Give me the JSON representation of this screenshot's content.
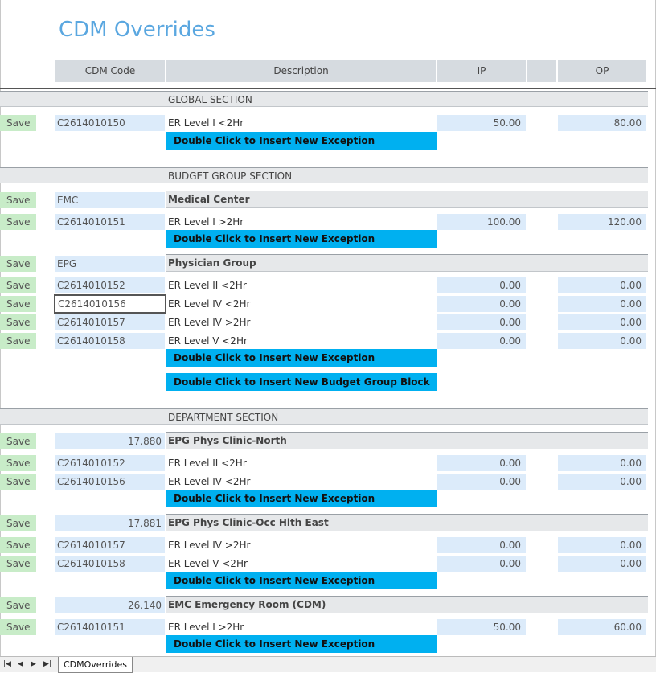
{
  "title": "CDM Overrides",
  "columns": {
    "cdm_code": "CDM Code",
    "description": "Description",
    "ip": "IP",
    "op": "OP"
  },
  "save_label": "Save",
  "sections": {
    "global": "GLOBAL SECTION",
    "budget": "BUDGET GROUP SECTION",
    "department": "DEPARTMENT SECTION"
  },
  "buttons": {
    "insert_exception": "Double Click to Insert New Exception",
    "insert_budget_block": "Double Click to Insert New Budget Group Block"
  },
  "global_rows": [
    {
      "code": "C2614010150",
      "desc": "ER Level I <2Hr",
      "ip": "50.00",
      "op": "80.00"
    }
  ],
  "budget_groups": [
    {
      "code": "EMC",
      "name": "Medical Center",
      "rows": [
        {
          "code": "C2614010151",
          "desc": "ER Level I >2Hr",
          "ip": "100.00",
          "op": "120.00"
        }
      ]
    },
    {
      "code": "EPG",
      "name": "Physician Group",
      "rows": [
        {
          "code": "C2614010152",
          "desc": "ER Level II <2Hr",
          "ip": "0.00",
          "op": "0.00"
        },
        {
          "code": "C2614010156",
          "desc": "ER Level IV <2Hr",
          "ip": "0.00",
          "op": "0.00"
        },
        {
          "code": "C2614010157",
          "desc": "ER Level IV >2Hr",
          "ip": "0.00",
          "op": "0.00"
        },
        {
          "code": "C2614010158",
          "desc": "ER Level V <2Hr",
          "ip": "0.00",
          "op": "0.00"
        }
      ]
    }
  ],
  "departments": [
    {
      "code": "17,880",
      "name": "EPG Phys Clinic-North",
      "rows": [
        {
          "code": "C2614010152",
          "desc": "ER Level II <2Hr",
          "ip": "0.00",
          "op": "0.00"
        },
        {
          "code": "C2614010156",
          "desc": "ER Level IV <2Hr",
          "ip": "0.00",
          "op": "0.00"
        }
      ]
    },
    {
      "code": "17,881",
      "name": "EPG Phys Clinic-Occ Hlth East",
      "rows": [
        {
          "code": "C2614010157",
          "desc": "ER Level IV >2Hr",
          "ip": "0.00",
          "op": "0.00"
        },
        {
          "code": "C2614010158",
          "desc": "ER Level V <2Hr",
          "ip": "0.00",
          "op": "0.00"
        }
      ]
    },
    {
      "code": "26,140",
      "name": "EMC Emergency Room (CDM)",
      "rows": [
        {
          "code": "C2614010151",
          "desc": "ER Level I >2Hr",
          "ip": "50.00",
          "op": "60.00"
        }
      ]
    }
  ],
  "sheet_tab": "CDMOverrides",
  "colors": {
    "title": "#5aa7e0",
    "save_bg": "#c8ecc8",
    "cell_bg": "#dcebfa",
    "button_bg": "#00b0f0",
    "header_bg": "#d6dbe0"
  }
}
